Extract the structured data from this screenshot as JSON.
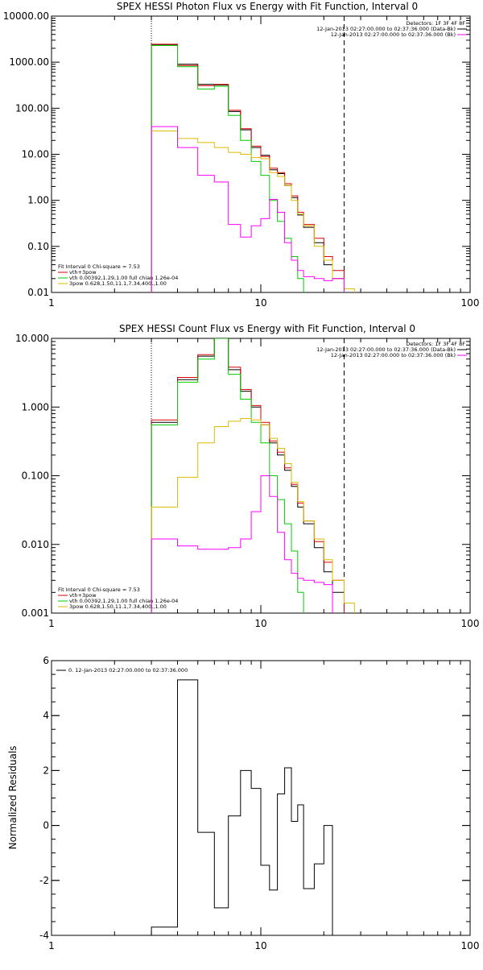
{
  "chart_data": [
    {
      "type": "line",
      "title": "SPEX HESSI Photon Flux vs Energy with Fit Function, Interval 0",
      "xscale": "log",
      "yscale": "log",
      "xlim": [
        1,
        100
      ],
      "ylim": [
        0.01,
        10000
      ],
      "x_tick_labels": [
        "1",
        "10",
        "100"
      ],
      "y_tick_labels": [
        "0.01",
        "0.10",
        "1.00",
        "10.00",
        "100.00",
        "1000.00",
        "10000.00"
      ],
      "x_tick_values": [
        1,
        10,
        100
      ],
      "y_tick_values": [
        0.01,
        0.1,
        1,
        10,
        100,
        1000,
        10000
      ],
      "fit_range_lines": [
        3,
        25
      ],
      "header_text": [
        "Detectors: 1F 3F 4F 8F",
        "12-Jan-2013 02:27:00.000 to 02:37:36.000 (Data-Bk)",
        "12-Jan-2013 02:27:00.000 to 02:37:36.000 (Bk)"
      ],
      "header_colors": [
        "",
        "#000000",
        "#ff00ff"
      ],
      "legend": [
        {
          "text": "Fit Interval 0   Chi-square = 7.53",
          "color": "#000000"
        },
        {
          "text": "vth+3pow",
          "color": "#dd0000"
        },
        {
          "text": "vth 0.00392,1.29,1.00  full chian 1.26e-04",
          "color": "#00cc00"
        },
        {
          "text": "3pow 0.628,1.50,11.1,7.34,400.,1.00",
          "color": "#ddbb00"
        }
      ],
      "edges": [
        3.0,
        4.0,
        5.0,
        6.0,
        7.0,
        8.0,
        9.0,
        10.0,
        11.0,
        12.0,
        13.0,
        14.0,
        15.0,
        16.0,
        18.0,
        20.0,
        22.0,
        25.0,
        28.0
      ],
      "series": [
        {
          "color": "#000000",
          "values": [
            2400,
            900,
            330,
            320,
            85,
            34,
            14,
            9.5,
            4.6,
            3.8,
            2.1,
            1.15,
            0.48,
            0.26,
            0.12,
            0.04,
            0.02,
            null
          ]
        },
        {
          "color": "#dd0000",
          "values": [
            2450,
            850,
            310,
            330,
            90,
            36,
            15,
            9.0,
            5.0,
            4.0,
            2.3,
            1.25,
            0.55,
            0.3,
            0.15,
            0.06,
            0.03,
            null
          ]
        },
        {
          "color": "#00cc00",
          "values": [
            2300,
            800,
            260,
            300,
            70,
            20,
            7.0,
            3.5,
            1.0,
            0.35,
            0.15,
            0.06,
            0.02,
            null,
            null,
            null,
            null,
            null
          ]
        },
        {
          "color": "#ddbb00",
          "values": [
            32,
            22,
            18,
            14,
            11,
            10,
            8.5,
            8.0,
            4.0,
            3.3,
            2.1,
            1.0,
            0.5,
            0.28,
            0.1,
            0.05,
            0.02,
            0.012
          ]
        },
        {
          "color": "#ff00ff",
          "values": [
            40,
            14,
            3.5,
            2.5,
            0.3,
            0.16,
            0.28,
            0.4,
            1.05,
            0.55,
            0.12,
            0.05,
            0.03,
            0.022,
            0.02,
            0.018,
            0.02,
            null
          ]
        }
      ]
    },
    {
      "type": "line",
      "title": "SPEX HESSI Count Flux vs Energy with Fit Function, Interval 0",
      "xscale": "log",
      "yscale": "log",
      "xlim": [
        1,
        100
      ],
      "ylim": [
        0.001,
        10
      ],
      "x_tick_labels": [
        "1",
        "10",
        "100"
      ],
      "y_tick_labels": [
        "0.001",
        "0.010",
        "0.100",
        "1.000",
        "10.000"
      ],
      "x_tick_values": [
        1,
        10,
        100
      ],
      "y_tick_values": [
        0.001,
        0.01,
        0.1,
        1,
        10
      ],
      "fit_range_lines": [
        3,
        25
      ],
      "header_text": [
        "Detectors: 1F 3F 4F 8F",
        "12-Jan-2013 02:27:00.000 to 02:37:36.000 (Data-Bk)",
        "12-Jan-2013 02:27:00.000 to 02:37:36.000 (Bk)"
      ],
      "header_colors": [
        "",
        "#000000",
        "#ff00ff"
      ],
      "legend": [
        {
          "text": "Fit Interval 0   Chi-square = 7.53",
          "color": "#000000"
        },
        {
          "text": "vth+3pow",
          "color": "#dd0000"
        },
        {
          "text": "vth 0.00392,1.29,1.00  full chian 1.26e-04",
          "color": "#00cc00"
        },
        {
          "text": "3pow 0.628,1.50,11.1,7.34,400.,1.00",
          "color": "#ddbb00"
        }
      ],
      "edges": [
        3.0,
        4.0,
        5.0,
        6.0,
        7.0,
        8.0,
        9.0,
        10.0,
        11.0,
        12.0,
        13.0,
        14.0,
        15.0,
        16.0,
        18.0,
        20.0,
        22.0,
        25.0,
        28.0
      ],
      "series": [
        {
          "color": "#000000",
          "values": [
            0.6,
            2.5,
            5.5,
            10.0,
            3.5,
            1.7,
            1.0,
            0.55,
            0.3,
            0.2,
            0.12,
            0.07,
            0.035,
            0.02,
            0.009,
            0.004,
            0.002,
            null
          ]
        },
        {
          "color": "#dd0000",
          "values": [
            0.65,
            2.7,
            5.8,
            10.5,
            3.8,
            1.8,
            1.05,
            0.6,
            0.32,
            0.22,
            0.13,
            0.075,
            0.04,
            0.022,
            0.011,
            0.0055,
            0.003,
            null
          ]
        },
        {
          "color": "#00cc00",
          "values": [
            0.55,
            2.3,
            5.0,
            10.0,
            3.0,
            1.3,
            0.6,
            0.3,
            0.1,
            0.045,
            0.02,
            0.008,
            0.002,
            null,
            null,
            null,
            null,
            null
          ]
        },
        {
          "color": "#ddbb00",
          "values": [
            0.035,
            0.095,
            0.3,
            0.52,
            0.62,
            0.68,
            0.65,
            0.55,
            0.35,
            0.25,
            0.15,
            0.08,
            0.042,
            0.022,
            0.012,
            0.006,
            0.003,
            0.0014
          ]
        },
        {
          "color": "#ff00ff",
          "values": [
            0.012,
            0.0095,
            0.0085,
            0.0085,
            0.009,
            0.012,
            0.03,
            0.1,
            0.05,
            0.015,
            0.006,
            0.0038,
            0.0032,
            0.003,
            0.0028,
            0.0026,
            null,
            null
          ]
        }
      ]
    },
    {
      "type": "line",
      "title": "",
      "ylabel": "Normalized Residuals",
      "xscale": "log",
      "yscale": "linear",
      "xlim": [
        1,
        100
      ],
      "ylim": [
        -4,
        6
      ],
      "x_tick_labels": [
        "1",
        "10",
        "100"
      ],
      "y_tick_labels": [
        "-4",
        "-2",
        "0",
        "2",
        "4",
        "6"
      ],
      "x_tick_values": [
        1,
        10,
        100
      ],
      "y_tick_values": [
        -4,
        -2,
        0,
        2,
        4,
        6
      ],
      "legend": [
        {
          "text": "0. 12-Jan-2013 02:27:00.000 to 02:37:36.000",
          "color": "#000000"
        }
      ],
      "edges": [
        3.0,
        4.0,
        5.0,
        6.0,
        7.0,
        8.0,
        9.0,
        10.0,
        11.0,
        12.0,
        13.0,
        14.0,
        15.0,
        16.0,
        18.0,
        20.0,
        22.0,
        25.0
      ],
      "series": [
        {
          "color": "#000000",
          "values": [
            -3.7,
            5.3,
            -0.25,
            -3.0,
            0.35,
            2.0,
            1.35,
            -1.45,
            -2.35,
            1.15,
            2.1,
            0.15,
            0.75,
            -2.3,
            -1.4,
            0.0,
            -4.0
          ]
        }
      ]
    }
  ]
}
